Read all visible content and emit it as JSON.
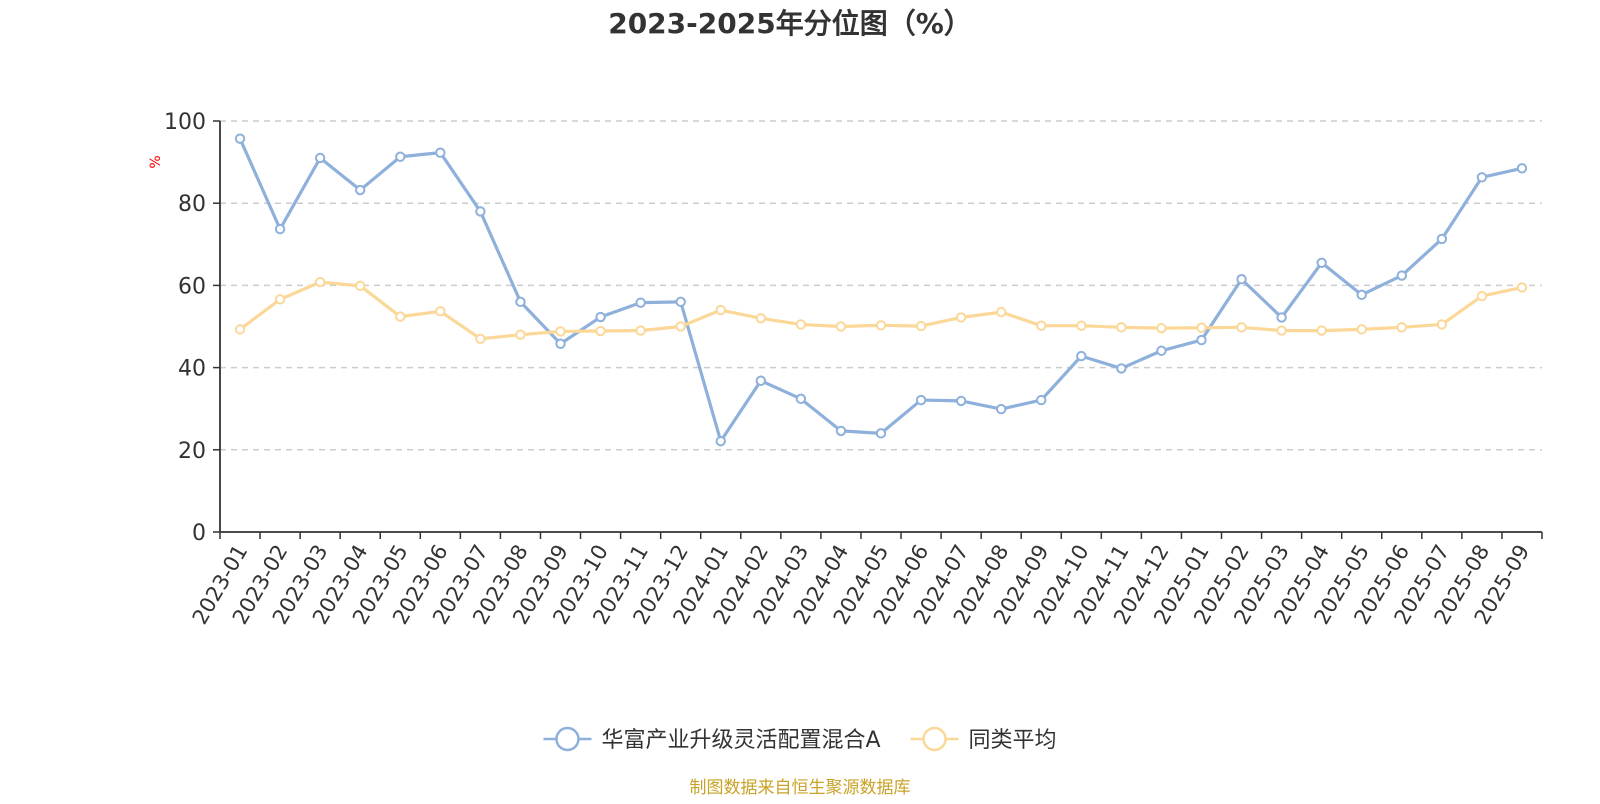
{
  "chart_data": {
    "type": "line",
    "title": "2023-2025年分位图（%）",
    "ylabel": "%",
    "ylim": [
      0,
      100
    ],
    "yticks": [
      0,
      20,
      40,
      60,
      80,
      100
    ],
    "grid": true,
    "legend_position": "bottom",
    "categories": [
      "2023-01",
      "2023-02",
      "2023-03",
      "2023-04",
      "2023-05",
      "2023-06",
      "2023-07",
      "2023-08",
      "2023-09",
      "2023-10",
      "2023-11",
      "2023-12",
      "2024-01",
      "2024-02",
      "2024-03",
      "2024-04",
      "2024-05",
      "2024-06",
      "2024-07",
      "2024-08",
      "2024-09",
      "2024-10",
      "2024-11",
      "2024-12",
      "2025-01",
      "2025-02",
      "2025-03",
      "2025-04",
      "2025-05",
      "2025-06",
      "2025-07",
      "2025-08",
      "2025-09"
    ],
    "series": [
      {
        "name": "华富产业升级灵活配置混合A",
        "color": "#8eb0db",
        "values": [
          95.7,
          73.7,
          91,
          83.2,
          91.3,
          92.3,
          78,
          56,
          45.8,
          52.3,
          55.8,
          56,
          22.1,
          36.8,
          32.4,
          24.6,
          24,
          32.1,
          31.9,
          29.9,
          32.1,
          42.8,
          39.8,
          44.1,
          46.7,
          61.5,
          52.2,
          65.5,
          57.7,
          62.4,
          71.3,
          86.3,
          88.5
        ]
      },
      {
        "name": "同类平均",
        "color": "#fbd898",
        "values": [
          49.3,
          56.6,
          60.8,
          59.9,
          52.4,
          53.7,
          47,
          48,
          48.8,
          48.9,
          49,
          50,
          54,
          52,
          50.5,
          50,
          50.3,
          50.1,
          52.2,
          53.5,
          50.2,
          50.2,
          49.8,
          49.6,
          49.7,
          49.8,
          49,
          49,
          49.3,
          49.8,
          50.5,
          57.4,
          59.5
        ]
      }
    ]
  },
  "footer": {
    "source_text": "制图数据来自恒生聚源数据库"
  },
  "colors": {
    "axis": "#333333",
    "grid": "#cccccc",
    "ylabel": "#ff0000",
    "source": "#c9a227"
  }
}
